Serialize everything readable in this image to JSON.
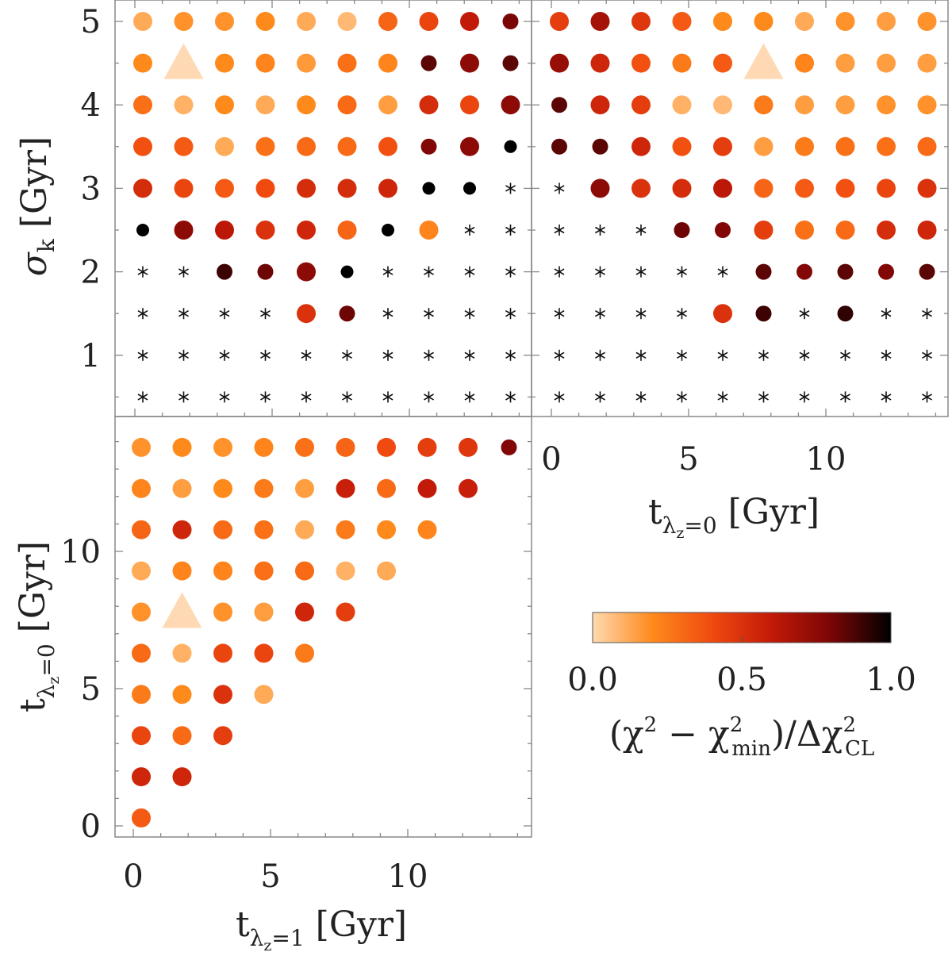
{
  "chart_data": [
    {
      "type": "scatter",
      "panel": "top-left",
      "xlabel": "",
      "ylabel": "σ_k [Gyr]",
      "ylim": [
        0.3,
        5.25
      ],
      "y_ticks": [
        "1",
        "2",
        "3",
        "4",
        "5"
      ],
      "columns": 10,
      "rows_y": [
        5.0,
        4.5,
        4.0,
        3.5,
        3.0,
        2.5,
        2.0,
        1.5,
        1.0,
        0.5
      ],
      "values": [
        [
          0.12,
          0.18,
          0.18,
          0.2,
          0.12,
          0.08,
          0.32,
          0.42,
          0.6,
          0.8
        ],
        [
          0.2,
          "best",
          0.2,
          0.22,
          0.16,
          0.28,
          0.22,
          0.85,
          0.75,
          0.85
        ],
        [
          0.28,
          0.1,
          0.2,
          0.12,
          0.2,
          0.3,
          0.15,
          0.52,
          0.42,
          0.75
        ],
        [
          0.38,
          0.35,
          0.12,
          0.28,
          0.3,
          0.3,
          0.38,
          0.78,
          0.75,
          1.0
        ],
        [
          0.52,
          0.42,
          0.35,
          0.4,
          0.52,
          0.52,
          0.55,
          1.0,
          1.0,
          "x"
        ],
        [
          1.0,
          0.75,
          0.62,
          0.5,
          0.55,
          0.32,
          1.0,
          0.22,
          "x",
          "x"
        ],
        [
          "x",
          "x",
          0.9,
          0.82,
          0.75,
          1.0,
          "x",
          "x",
          "x",
          "x"
        ],
        [
          "x",
          "x",
          "x",
          "x",
          0.5,
          0.82,
          "x",
          "x",
          "x",
          "x"
        ],
        [
          "x",
          "x",
          "x",
          "x",
          "x",
          "x",
          "x",
          "x",
          "x",
          "x"
        ],
        [
          "x",
          "x",
          "x",
          "x",
          "x",
          "x",
          "x",
          "x",
          "x",
          "x"
        ]
      ]
    },
    {
      "type": "scatter",
      "panel": "top-right",
      "xlabel": "t_{λz=0} [Gyr]",
      "ylabel": "",
      "x_ticks": [
        "0",
        "5",
        "10"
      ],
      "columns": 10,
      "rows_y": [
        5.0,
        4.5,
        4.0,
        3.5,
        3.0,
        2.5,
        2.0,
        1.5,
        1.0,
        0.5
      ],
      "values": [
        [
          0.45,
          0.68,
          0.48,
          0.35,
          0.2,
          0.2,
          0.12,
          0.18,
          0.15,
          0.18
        ],
        [
          0.72,
          0.55,
          0.38,
          0.25,
          0.35,
          "best",
          0.22,
          0.15,
          0.15,
          0.15
        ],
        [
          0.85,
          0.55,
          0.45,
          0.1,
          0.08,
          0.25,
          0.15,
          0.15,
          0.18,
          0.18
        ],
        [
          0.85,
          0.85,
          0.55,
          0.38,
          0.45,
          0.15,
          0.25,
          0.28,
          0.28,
          0.3
        ],
        [
          "x",
          0.75,
          0.5,
          0.52,
          0.62,
          0.32,
          0.35,
          0.38,
          0.42,
          0.5
        ],
        [
          "x",
          "x",
          "x",
          0.82,
          0.78,
          0.45,
          0.28,
          0.3,
          0.52,
          0.55
        ],
        [
          "x",
          "x",
          "x",
          "x",
          "x",
          0.85,
          0.78,
          0.85,
          0.78,
          0.85
        ],
        [
          "x",
          "x",
          "x",
          "x",
          0.5,
          0.9,
          "x",
          0.92,
          "x",
          "x"
        ],
        [
          "x",
          "x",
          "x",
          "x",
          "x",
          "x",
          "x",
          "x",
          "x",
          "x"
        ],
        [
          "x",
          "x",
          "x",
          "x",
          "x",
          "x",
          "x",
          "x",
          "x",
          "x"
        ]
      ]
    },
    {
      "type": "scatter",
      "panel": "bottom-left",
      "xlabel": "t_{λz=1} [Gyr]",
      "ylabel": "t_{λz=0} [Gyr]",
      "x_ticks": [
        "0",
        "5",
        "10"
      ],
      "y_ticks": [
        "0",
        "5",
        "10"
      ],
      "columns": 10,
      "rows_y": [
        13.8,
        12.3,
        10.8,
        9.3,
        7.8,
        6.3,
        4.8,
        3.3,
        1.8,
        0.3
      ],
      "values": [
        [
          0.18,
          0.2,
          0.18,
          0.22,
          0.28,
          0.32,
          0.4,
          0.45,
          0.48,
          0.78
        ],
        [
          0.22,
          0.15,
          0.2,
          0.25,
          0.15,
          0.58,
          0.3,
          0.6,
          0.58,
          null
        ],
        [
          0.32,
          0.55,
          0.3,
          0.28,
          0.12,
          0.25,
          0.2,
          0.22,
          null,
          null
        ],
        [
          0.12,
          0.22,
          0.22,
          0.28,
          0.3,
          0.1,
          0.12,
          null,
          null,
          null
        ],
        [
          0.18,
          "best",
          0.18,
          0.15,
          0.55,
          0.45,
          null,
          null,
          null,
          null
        ],
        [
          0.3,
          0.1,
          0.42,
          0.42,
          0.25,
          null,
          null,
          null,
          null,
          null
        ],
        [
          0.25,
          0.2,
          0.5,
          0.12,
          null,
          null,
          null,
          null,
          null,
          null
        ],
        [
          0.42,
          0.3,
          0.45,
          null,
          null,
          null,
          null,
          null,
          null,
          null
        ],
        [
          0.55,
          0.55,
          null,
          null,
          null,
          null,
          null,
          null,
          null,
          null
        ],
        [
          0.35,
          null,
          null,
          null,
          null,
          null,
          null,
          null,
          null,
          null
        ]
      ]
    }
  ],
  "colorbar": {
    "ticks": [
      "0.0",
      "0.5",
      "1.0"
    ],
    "label": "(χ² − χ²_min)/Δχ²_CL",
    "stops": [
      "#ffd9b0",
      "#ff8a1c",
      "#f04a10",
      "#c21a08",
      "#7a0606",
      "#000000"
    ]
  },
  "labels": {
    "sigma_k": "σ",
    "sigma_k_sub": "k",
    "gyr_unit": "[Gyr]",
    "t_letter": "t",
    "lambda_z0_sub": "λ",
    "z_sub": "z",
    "eq0": "=0",
    "eq1": "=1",
    "cb_paren_open": "(χ",
    "cb_minus": " − χ",
    "cb_min": "min",
    "cb_paren_close": ")/Δχ",
    "cb_cl": "CL",
    "sup2": "2"
  },
  "marker_legend": {
    "triangle": "best",
    "asterisk": "x"
  }
}
